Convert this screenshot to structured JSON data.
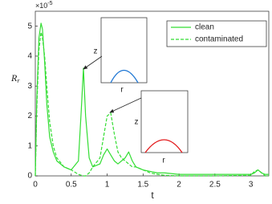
{
  "chart_data": {
    "type": "line",
    "ylabel": "R",
    "ylabel_subscript": "r",
    "xlabel": "t",
    "y_multiplier": {
      "base": "×10",
      "exponent": "-5"
    },
    "x": [
      0,
      0.02,
      0.05,
      0.08,
      0.1,
      0.13,
      0.16,
      0.2,
      0.25,
      0.3,
      0.4,
      0.5,
      0.6,
      0.64,
      0.67,
      0.7,
      0.75,
      0.8,
      0.9,
      0.95,
      1.0,
      1.05,
      1.1,
      1.15,
      1.2,
      1.25,
      1.3,
      1.35,
      1.4,
      1.5,
      1.6,
      1.7,
      1.8,
      2.0,
      2.5,
      3.0,
      3.05,
      3.1,
      3.15,
      3.2,
      3.25
    ],
    "series": [
      {
        "name": "clean",
        "color": "#33dd33",
        "dash": false,
        "values": [
          0,
          2.5,
          4.6,
          5.1,
          4.9,
          3.8,
          2.4,
          1.3,
          0.8,
          0.5,
          0.3,
          0.2,
          0.5,
          2.2,
          3.6,
          2.0,
          0.6,
          0.3,
          0.4,
          0.7,
          0.9,
          0.7,
          0.5,
          0.4,
          0.5,
          0.6,
          0.8,
          0.5,
          0.3,
          0.2,
          0.15,
          0.1,
          0.1,
          0.05,
          0.05,
          0.05,
          0.1,
          0.2,
          0.1,
          0.05,
          0.05
        ]
      },
      {
        "name": "contaminated",
        "color": "#33dd33",
        "dash": true,
        "values": [
          0,
          2.2,
          4.2,
          4.8,
          4.6,
          4.0,
          3.0,
          1.8,
          1.0,
          0.6,
          0.3,
          0.2,
          0.05,
          0.02,
          0,
          0,
          0.1,
          0.3,
          0.6,
          1.3,
          2.0,
          2.1,
          1.4,
          0.8,
          0.6,
          0.5,
          0.4,
          0.3,
          0.3,
          0.2,
          0.1,
          0.05,
          0.02,
          0,
          0,
          0.02,
          0.15,
          0.2,
          0.1,
          0,
          0
        ]
      }
    ],
    "xlim": [
      0,
      3.25
    ],
    "xticks": [
      0,
      0.5,
      1,
      1.5,
      2,
      2.5,
      3
    ],
    "ylim": [
      0,
      5.5
    ],
    "yticks": [
      0,
      1,
      2,
      3,
      4,
      5
    ],
    "grid": false,
    "legend": "upper right",
    "insets": [
      {
        "xlabel": "r",
        "ylabel": "z",
        "color": "#1f77d4"
      },
      {
        "xlabel": "r",
        "ylabel": "z",
        "color": "#e31a1c"
      }
    ]
  }
}
